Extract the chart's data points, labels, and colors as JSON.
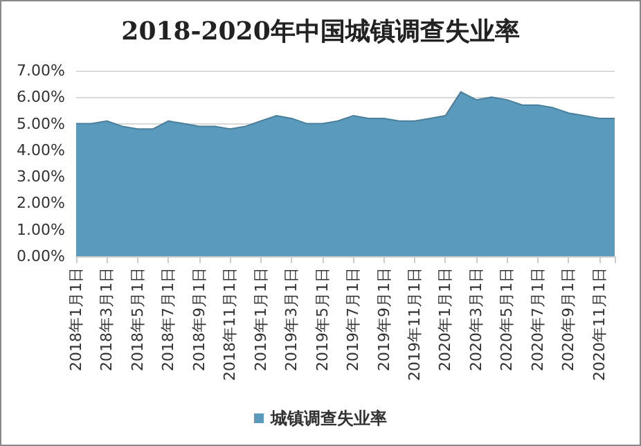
{
  "chart_data": {
    "type": "area",
    "title": "2018-2020年中国城镇调查失业率",
    "categories": [
      "2018年1月1日",
      null,
      "2018年3月1日",
      null,
      "2018年5月1日",
      null,
      "2018年7月1日",
      null,
      "2018年9月1日",
      null,
      "2018年11月1日",
      null,
      "2019年1月1日",
      null,
      "2019年3月1日",
      null,
      "2019年5月1日",
      null,
      "2019年7月1日",
      null,
      "2019年9月1日",
      null,
      "2019年11月1日",
      null,
      "2020年1月1日",
      null,
      "2020年3月1日",
      null,
      "2020年5月1日",
      null,
      "2020年7月1日",
      null,
      "2020年9月1日",
      null,
      "2020年11月1日",
      null
    ],
    "series": [
      {
        "name": "城镇调查失业率",
        "color": "#5a9bbd",
        "values": [
          5.0,
          5.0,
          5.1,
          4.9,
          4.8,
          4.8,
          5.1,
          5.0,
          4.9,
          4.9,
          4.8,
          4.9,
          5.1,
          5.3,
          5.2,
          5.0,
          5.0,
          5.1,
          5.3,
          5.2,
          5.2,
          5.1,
          5.1,
          5.2,
          5.3,
          6.2,
          5.9,
          6.0,
          5.9,
          5.7,
          5.7,
          5.6,
          5.4,
          5.3,
          5.2,
          5.2
        ]
      }
    ],
    "ylim": [
      0,
      7
    ],
    "yticks": [
      {
        "value": 0,
        "label": "0.00%"
      },
      {
        "value": 1,
        "label": "1.00%"
      },
      {
        "value": 2,
        "label": "2.00%"
      },
      {
        "value": 3,
        "label": "3.00%"
      },
      {
        "value": 4,
        "label": "4.00%"
      },
      {
        "value": 5,
        "label": "5.00%"
      },
      {
        "value": 6,
        "label": "6.00%"
      },
      {
        "value": 7,
        "label": "7.00%"
      }
    ],
    "grid": "y",
    "legend": "bottom",
    "marker": "none"
  }
}
